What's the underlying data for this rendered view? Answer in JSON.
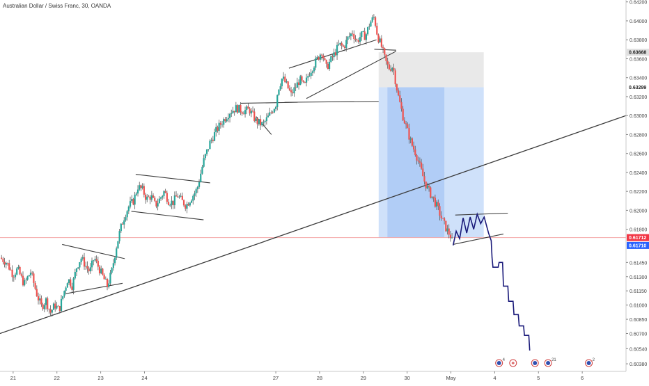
{
  "window": {
    "title": "Australian Dollar / Swiss Franc, 30, OANDA"
  },
  "colors": {
    "up": "#26a69a",
    "down": "#ef5350",
    "wick": "#5a5a5a",
    "trend": "#3a3a3a",
    "projection": "#1a1a7a",
    "target_zone": "#bfd7f8",
    "target_zone_dark": "#a9c8f5",
    "stop_zone": "#e2e2e2",
    "price_line": "#f4a8a8",
    "label_stop": "#e0e0e0",
    "label_entry": "#2962ff",
    "label_price": "#f23645"
  },
  "chart_data": {
    "type": "candlestick",
    "title": "Australian Dollar / Swiss Franc, 30, OANDA",
    "x_ticks": [
      {
        "label": "21",
        "day": 21
      },
      {
        "label": "22",
        "day": 22
      },
      {
        "label": "23",
        "day": 23
      },
      {
        "label": "24",
        "day": 24
      },
      {
        "label": "27",
        "day": 27
      },
      {
        "label": "28",
        "day": 28
      },
      {
        "label": "29",
        "day": 29
      },
      {
        "label": "30",
        "day": 30
      },
      {
        "label": "May",
        "day": 31
      },
      {
        "label": "4",
        "day": 32
      },
      {
        "label": "5",
        "day": 33
      },
      {
        "label": "6",
        "day": 34
      }
    ],
    "x_range": [
      20.7,
      35.0
    ],
    "ylim": [
      0.603,
      0.6422
    ],
    "y_ticks": [
      0.642,
      0.64,
      0.638,
      0.636,
      0.634,
      0.632,
      0.63,
      0.628,
      0.626,
      0.624,
      0.622,
      0.62,
      0.618,
      0.6145,
      0.613,
      0.6115,
      0.61,
      0.6085,
      0.607,
      0.6054,
      0.6038
    ],
    "y_tick_labels": [
      "0.64200",
      "0.64000",
      "0.63800",
      "0.63600",
      "0.63400",
      "0.63200",
      "0.63000",
      "0.62800",
      "0.62600",
      "0.62400",
      "0.62200",
      "0.62000",
      "0.61800",
      "0.61450",
      "0.61300",
      "0.61150",
      "0.61000",
      "0.60850",
      "0.60700",
      "0.60540",
      "0.60380"
    ],
    "price_labels": [
      {
        "value": 0.63668,
        "text": "0.63668",
        "style": "stop"
      },
      {
        "value": 0.63299,
        "text": "0.63299",
        "style": "entry"
      },
      {
        "value": 0.61712,
        "text": "0.61712",
        "style": "price"
      },
      {
        "value": 0.6171,
        "text": "0.61710",
        "style": "entry"
      }
    ],
    "current_price": 0.61712,
    "path_points": [
      [
        20.7,
        0.615
      ],
      [
        20.85,
        0.6145
      ],
      [
        21.0,
        0.6132
      ],
      [
        21.1,
        0.6138
      ],
      [
        21.25,
        0.6122
      ],
      [
        21.4,
        0.6135
      ],
      [
        21.55,
        0.611
      ],
      [
        21.65,
        0.6098
      ],
      [
        21.75,
        0.6105
      ],
      [
        21.85,
        0.6092
      ],
      [
        21.95,
        0.61
      ],
      [
        22.05,
        0.6095
      ],
      [
        22.15,
        0.6112
      ],
      [
        22.25,
        0.6128
      ],
      [
        22.35,
        0.612
      ],
      [
        22.45,
        0.614
      ],
      [
        22.55,
        0.615
      ],
      [
        22.65,
        0.6142
      ],
      [
        22.75,
        0.6135
      ],
      [
        22.85,
        0.615
      ],
      [
        22.95,
        0.614
      ],
      [
        23.05,
        0.613
      ],
      [
        23.15,
        0.612
      ],
      [
        23.25,
        0.6135
      ],
      [
        23.35,
        0.616
      ],
      [
        23.45,
        0.618
      ],
      [
        23.55,
        0.6195
      ],
      [
        23.65,
        0.6205
      ],
      [
        23.75,
        0.621
      ],
      [
        23.85,
        0.6225
      ],
      [
        23.95,
        0.6222
      ],
      [
        24.05,
        0.6212
      ],
      [
        24.15,
        0.6215
      ],
      [
        24.25,
        0.6205
      ],
      [
        24.35,
        0.6212
      ],
      [
        24.45,
        0.622
      ],
      [
        24.55,
        0.621
      ],
      [
        24.65,
        0.6208
      ],
      [
        24.75,
        0.6216
      ],
      [
        24.85,
        0.621
      ],
      [
        24.95,
        0.6205
      ],
      [
        25.05,
        0.6212
      ],
      [
        25.2,
        0.6222
      ],
      [
        25.35,
        0.6252
      ],
      [
        25.5,
        0.6272
      ],
      [
        25.65,
        0.6285
      ],
      [
        25.8,
        0.6295
      ],
      [
        25.95,
        0.6304
      ],
      [
        26.1,
        0.6308
      ],
      [
        26.25,
        0.6305
      ],
      [
        26.4,
        0.6306
      ],
      [
        26.55,
        0.6294
      ],
      [
        26.7,
        0.629
      ],
      [
        26.85,
        0.63
      ],
      [
        27.0,
        0.6312
      ],
      [
        27.05,
        0.6328
      ],
      [
        27.15,
        0.634
      ],
      [
        27.25,
        0.6332
      ],
      [
        27.35,
        0.6322
      ],
      [
        27.45,
        0.633
      ],
      [
        27.55,
        0.6338
      ],
      [
        27.65,
        0.633
      ],
      [
        27.75,
        0.6344
      ],
      [
        27.85,
        0.6352
      ],
      [
        27.95,
        0.636
      ],
      [
        28.05,
        0.6368
      ],
      [
        28.15,
        0.635
      ],
      [
        28.25,
        0.6358
      ],
      [
        28.35,
        0.6366
      ],
      [
        28.45,
        0.6375
      ],
      [
        28.55,
        0.6372
      ],
      [
        28.65,
        0.6382
      ],
      [
        28.75,
        0.6388
      ],
      [
        28.85,
        0.6378
      ],
      [
        28.95,
        0.6385
      ],
      [
        29.05,
        0.6384
      ],
      [
        29.15,
        0.6398
      ],
      [
        29.25,
        0.6404
      ],
      [
        29.32,
        0.6385
      ],
      [
        29.42,
        0.6372
      ],
      [
        29.5,
        0.6358
      ],
      [
        29.58,
        0.635
      ],
      [
        29.68,
        0.6352
      ],
      [
        29.72,
        0.634
      ],
      [
        29.8,
        0.632
      ],
      [
        29.9,
        0.63
      ],
      [
        30.0,
        0.6285
      ],
      [
        30.1,
        0.627
      ],
      [
        30.2,
        0.626
      ],
      [
        30.3,
        0.6245
      ],
      [
        30.4,
        0.623
      ],
      [
        30.5,
        0.622
      ],
      [
        30.6,
        0.6212
      ],
      [
        30.7,
        0.6202
      ],
      [
        30.8,
        0.619
      ],
      [
        30.9,
        0.618
      ],
      [
        31.0,
        0.6172
      ],
      [
        31.05,
        0.6163
      ]
    ],
    "projection_points": [
      [
        31.05,
        0.6163
      ],
      [
        31.12,
        0.6178
      ],
      [
        31.2,
        0.617
      ],
      [
        31.28,
        0.6192
      ],
      [
        31.36,
        0.6176
      ],
      [
        31.44,
        0.6193
      ],
      [
        31.52,
        0.618
      ],
      [
        31.6,
        0.6196
      ],
      [
        31.68,
        0.6186
      ],
      [
        31.76,
        0.6193
      ],
      [
        31.86,
        0.6176
      ],
      [
        31.92,
        0.6168
      ],
      [
        31.94,
        0.615
      ],
      [
        31.96,
        0.614
      ],
      [
        32.08,
        0.614
      ],
      [
        32.1,
        0.6145
      ],
      [
        32.18,
        0.6145
      ],
      [
        32.2,
        0.612
      ],
      [
        32.3,
        0.612
      ],
      [
        32.32,
        0.6104
      ],
      [
        32.42,
        0.6104
      ],
      [
        32.44,
        0.609
      ],
      [
        32.54,
        0.609
      ],
      [
        32.56,
        0.6078
      ],
      [
        32.66,
        0.6078
      ],
      [
        32.68,
        0.6068
      ],
      [
        32.78,
        0.6068
      ],
      [
        32.8,
        0.6052
      ]
    ],
    "lines": [
      {
        "name": "long-trendline",
        "points": [
          [
            20.7,
            0.607
          ],
          [
            35.0,
            0.63
          ]
        ]
      },
      {
        "name": "wedge-1-upper",
        "points": [
          [
            22.12,
            0.6164
          ],
          [
            23.55,
            0.6149
          ]
        ]
      },
      {
        "name": "wedge-1-lower",
        "points": [
          [
            22.2,
            0.6112
          ],
          [
            23.5,
            0.6123
          ]
        ]
      },
      {
        "name": "flag-2-upper",
        "points": [
          [
            23.8,
            0.6238
          ],
          [
            25.5,
            0.6229
          ]
        ]
      },
      {
        "name": "flag-2-lower",
        "points": [
          [
            23.7,
            0.6199
          ],
          [
            25.35,
            0.619
          ]
        ]
      },
      {
        "name": "flag-3-upper",
        "points": [
          [
            26.2,
            0.6313
          ],
          [
            27.5,
            0.6314
          ]
        ]
      },
      {
        "name": "flag-3-lower",
        "points": [
          [
            26.55,
            0.6299
          ],
          [
            26.9,
            0.628
          ]
        ]
      },
      {
        "name": "flag-3-baseline",
        "points": [
          [
            27.2,
            0.6314
          ],
          [
            29.35,
            0.6315
          ]
        ]
      },
      {
        "name": "channel-upper",
        "points": [
          [
            27.3,
            0.635
          ],
          [
            29.3,
            0.638
          ]
        ]
      },
      {
        "name": "channel-lower",
        "points": [
          [
            27.7,
            0.6318
          ],
          [
            29.75,
            0.6368
          ]
        ]
      },
      {
        "name": "channel-top",
        "points": [
          [
            29.25,
            0.637
          ],
          [
            29.75,
            0.6369
          ]
        ]
      },
      {
        "name": "triangle-upper",
        "points": [
          [
            31.1,
            0.6195
          ],
          [
            32.3,
            0.6197
          ]
        ]
      },
      {
        "name": "triangle-lower",
        "points": [
          [
            31.05,
            0.6164
          ],
          [
            32.2,
            0.6175
          ]
        ]
      }
    ],
    "zones": [
      {
        "name": "stop-zone",
        "x1": 29.35,
        "x2": 31.75,
        "y1": 0.63668,
        "y2": 0.63299
      },
      {
        "name": "target-zone",
        "x1": 29.35,
        "x2": 31.75,
        "y1": 0.63299,
        "y2": 0.6171
      },
      {
        "name": "target-zone-dark",
        "x1": 29.55,
        "x2": 30.85,
        "y1": 0.63299,
        "y2": 0.6171
      }
    ],
    "event_markers": [
      {
        "day": 32.1,
        "text": "4",
        "kind": "flag"
      },
      {
        "day": 32.42,
        "text": "",
        "kind": "plus"
      },
      {
        "day": 32.92,
        "text": "",
        "kind": "flag"
      },
      {
        "day": 33.22,
        "text": "21",
        "kind": "flag"
      },
      {
        "day": 34.15,
        "text": "2",
        "kind": "flag"
      }
    ]
  }
}
